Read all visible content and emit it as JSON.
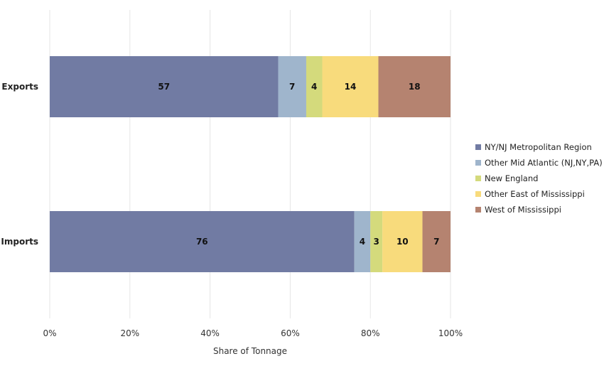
{
  "chart_data": {
    "type": "bar",
    "orientation": "horizontal",
    "stacked": true,
    "categories": [
      "Exports",
      "Imports"
    ],
    "series": [
      {
        "name": "NY/NJ Metropolitan Region",
        "color": "#717ba3",
        "values": [
          57,
          76
        ]
      },
      {
        "name": "Other Mid Atlantic (NJ,NY,PA)",
        "color": "#9fb5cc",
        "values": [
          7,
          4
        ]
      },
      {
        "name": "New England",
        "color": "#d4da7c",
        "values": [
          4,
          3
        ]
      },
      {
        "name": "Other East of Mississippi",
        "color": "#f8db7c",
        "values": [
          14,
          10
        ]
      },
      {
        "name": "West of Mississippi",
        "color": "#b58370",
        "values": [
          18,
          7
        ]
      }
    ],
    "xlabel": "Share of Tonnage",
    "xlim": [
      0,
      100
    ],
    "xticks": [
      "0%",
      "20%",
      "40%",
      "60%",
      "80%",
      "100%"
    ],
    "grid": true,
    "legend_position": "right"
  }
}
